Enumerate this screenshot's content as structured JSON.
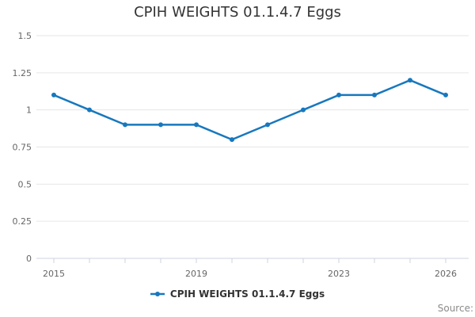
{
  "header": {
    "title": "CPIH WEIGHTS 01.1.4.7 Eggs"
  },
  "legend": {
    "label": "CPIH WEIGHTS 01.1.4.7 Eggs"
  },
  "footer": {
    "source_label": "Source:"
  },
  "colors": {
    "line": "#1778be",
    "grid": "#e6e6e6",
    "axis": "#ccd3dd",
    "tick_label": "#666666",
    "title_text": "#333333",
    "legend_text": "#333333",
    "source_text": "#8a8a8a"
  },
  "chart_data": {
    "type": "line",
    "title": "CPIH WEIGHTS 01.1.4.7 Eggs",
    "x": [
      2015,
      2016,
      2017,
      2018,
      2019,
      2020,
      2021,
      2022,
      2023,
      2024,
      2025,
      2026
    ],
    "series": [
      {
        "name": "CPIH WEIGHTS 01.1.4.7 Eggs",
        "values": [
          1.1,
          1.0,
          0.9,
          0.9,
          0.9,
          0.8,
          0.9,
          1.0,
          1.1,
          1.1,
          1.2,
          1.1
        ]
      }
    ],
    "ylim": [
      0,
      1.5
    ],
    "yticks": [
      0,
      0.25,
      0.5,
      0.75,
      1,
      1.25,
      1.5
    ],
    "ytick_labels": [
      "0",
      "0.25",
      "0.5",
      "0.75",
      "1",
      "1.25",
      "1.5"
    ],
    "xtick_years_labeled": [
      2015,
      2019,
      2023,
      2026
    ],
    "grid": "horizontal",
    "legend_position": "bottom",
    "marker": "circle"
  }
}
